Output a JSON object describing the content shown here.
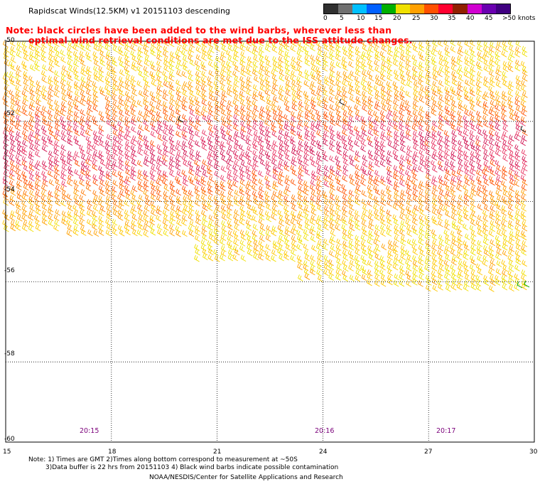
{
  "title": "Rapidscat Winds(12.5KM) v1 20151103 descending",
  "note": {
    "line1": "Note: black circles have been added to the wind barbs, wherever less than",
    "line2": "optimal wind retrieval conditions are met due to the ISS attitude changes."
  },
  "legend": {
    "colors": [
      "#303030",
      "#707070",
      "#00c0ff",
      "#0060ff",
      "#00b000",
      "#f0e000",
      "#ffa000",
      "#ff5000",
      "#ff0030",
      "#902000",
      "#d000d0",
      "#6a00b0",
      "#400080"
    ],
    "labels": [
      "0",
      "5",
      "10",
      "15",
      "20",
      "25",
      "30",
      "35",
      "40",
      "45",
      ">50 knots"
    ]
  },
  "latitudes": [
    "-50",
    "-52",
    "-54",
    "-56",
    "-58",
    "-60"
  ],
  "longitudes": [
    "15",
    "18",
    "21",
    "24",
    "27",
    "30"
  ],
  "times": [
    "20:15",
    "20:16",
    "20:17"
  ],
  "footer": {
    "line1": "Note: 1) Times are GMT 2)Times along bottom correspond to measurement at ~50S",
    "line2": "3)Data buffer is 22 hrs from 20151103 4) Black wind barbs indicate possible contamination",
    "line3": "NOAA/NESDIS/Center for Satellite Applications and Research"
  },
  "map": {
    "lat_range": [
      -60,
      -50
    ],
    "lon_range": [
      15,
      30
    ],
    "grid": true,
    "wind_speed_unit": "knots"
  }
}
